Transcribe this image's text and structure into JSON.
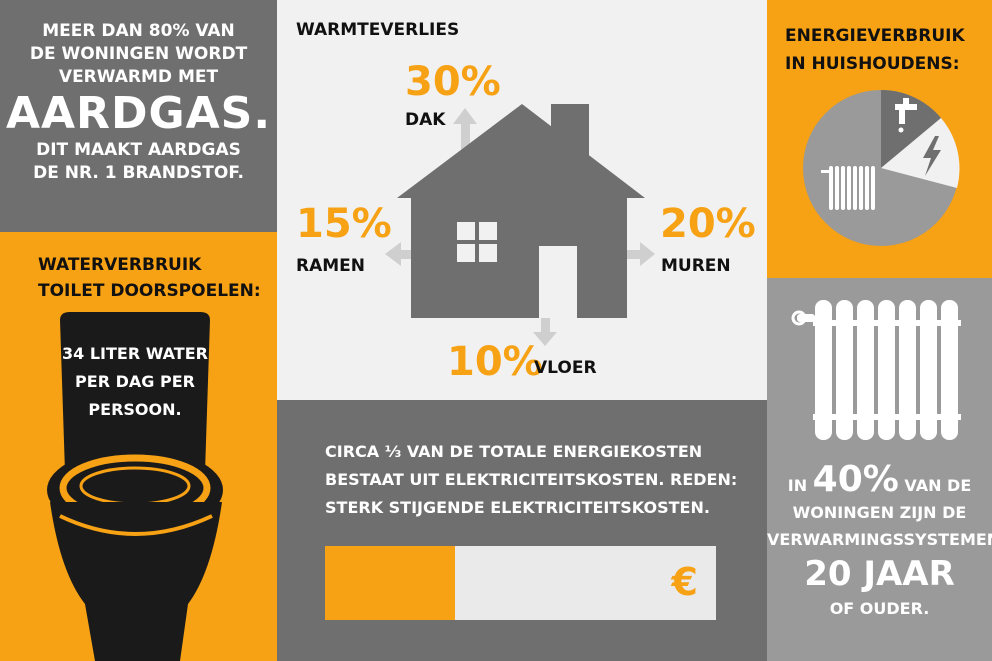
{
  "gas": {
    "line1": "MEER DAN 80% VAN",
    "line2": "DE WONINGEN WORDT",
    "line3": "VERWARMD MET",
    "big": "AARDGAS.",
    "line4": "DIT MAAKT AARDGAS",
    "line5": "DE NR. 1 BRANDSTOF."
  },
  "water": {
    "title1": "WATERVERBRUIK",
    "title2": "TOILET DOORSPOELEN:",
    "text1": "34 LITER WATER",
    "text2": "PER DAG PER",
    "text3": "PERSOON."
  },
  "heat": {
    "title": "WARMTEVERLIES",
    "roof_pct": "30%",
    "roof_label": "DAK",
    "windows_pct": "15%",
    "windows_label": "RAMEN",
    "walls_pct": "20%",
    "walls_label": "MUREN",
    "floor_pct": "10%",
    "floor_label": "VLOER"
  },
  "energy": {
    "title1": "ENERGIEVERBRUIK",
    "title2": "IN HUISHOUDENS:",
    "icons": [
      "water-tap-icon",
      "lightning-icon",
      "radiator-icon"
    ]
  },
  "elec": {
    "line1": "CIRCA ⅓ VAN DE TOTALE ENERGIEKOSTEN",
    "line2": "BESTAAT UIT ELEKTRICITEITSKOSTEN. REDEN:",
    "line3": "STERK STIJGENDE ELEKTRICITEITSKOSTEN.",
    "share": 0.333,
    "euro": "€"
  },
  "rad": {
    "pre": "IN ",
    "pct": "40%",
    "post": " VAN DE",
    "line2": "WONINGEN ZIJN DE",
    "line3": "VERWARMINGSSYSTEMEN",
    "big": "20 JAAR",
    "line5": "OF OUDER."
  },
  "colors": {
    "orange": "#f7a114",
    "dark_gray": "#6f6f6f",
    "light_gray": "#f1f1f1",
    "mid_gray": "#9a9a9a"
  }
}
